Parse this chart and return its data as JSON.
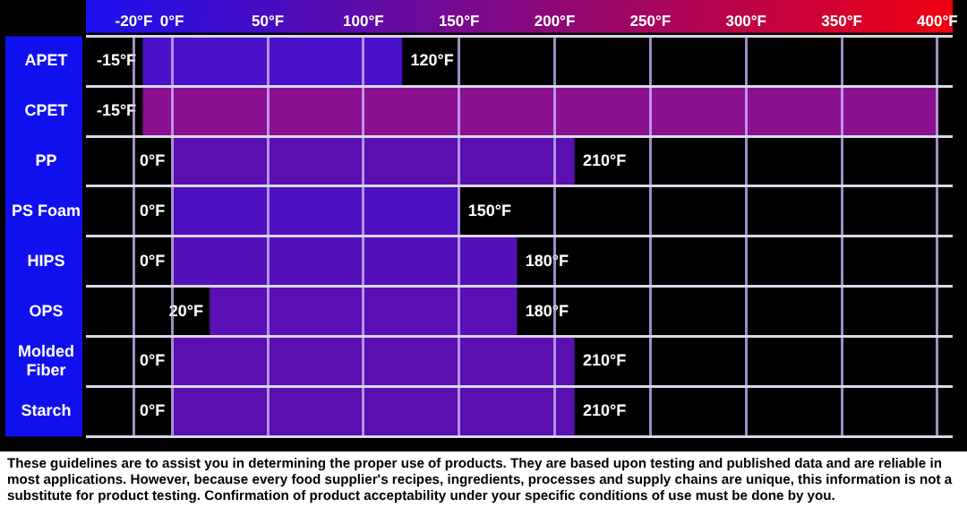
{
  "chart_data": {
    "type": "bar",
    "orientation": "horizontal",
    "categories": [
      "APET",
      "CPET",
      "PP",
      "PS Foam",
      "HIPS",
      "OPS",
      "Molded Fiber",
      "Starch"
    ],
    "base": [
      -15,
      -15,
      0,
      0,
      0,
      20,
      0,
      0
    ],
    "values": [
      135,
      415,
      210,
      150,
      180,
      160,
      210,
      210
    ],
    "colors": [
      "#4a12c8",
      "#8a1090",
      "#5a10b0",
      "#4c10c0",
      "#5410b8",
      "#5a10b4",
      "#5a10b0",
      "#5a10b0"
    ],
    "xlim": [
      -45,
      408
    ],
    "xticks": [
      {
        "value": -20,
        "label": "-20°F"
      },
      {
        "value": 0,
        "label": "0°F"
      },
      {
        "value": 50,
        "label": "50°F"
      },
      {
        "value": 100,
        "label": "100°F"
      },
      {
        "value": 150,
        "label": "150°F"
      },
      {
        "value": 200,
        "label": "200°F"
      },
      {
        "value": 250,
        "label": "250°F"
      },
      {
        "value": 300,
        "label": "300°F"
      },
      {
        "value": 350,
        "label": "350°F"
      },
      {
        "value": 400,
        "label": "400°F"
      }
    ],
    "grid": true,
    "annotations": [
      {
        "text": "-15°F",
        "x": -15,
        "y": "APET"
      },
      {
        "text": "120°F",
        "x": 120,
        "y": "APET"
      },
      {
        "text": "-15°F",
        "x": -15,
        "y": "CPET"
      },
      {
        "text": "0°F",
        "x": 0,
        "y": "PP"
      },
      {
        "text": "210°F",
        "x": 210,
        "y": "PP"
      },
      {
        "text": "0°F",
        "x": 0,
        "y": "PS Foam"
      },
      {
        "text": "150°F",
        "x": 150,
        "y": "PS Foam"
      },
      {
        "text": "0°F",
        "x": 0,
        "y": "HIPS"
      },
      {
        "text": "180°F",
        "x": 180,
        "y": "HIPS"
      },
      {
        "text": "20°F",
        "x": 20,
        "y": "OPS"
      },
      {
        "text": "180°F",
        "x": 180,
        "y": "OPS"
      },
      {
        "text": "0°F",
        "x": 0,
        "y": "Molded Fiber"
      },
      {
        "text": "210°F",
        "x": 210,
        "y": "Molded Fiber"
      },
      {
        "text": "0°F",
        "x": 0,
        "y": "Starch"
      },
      {
        "text": "210°F",
        "x": 210,
        "y": "Starch"
      },
      "These guidelines are to assist you in determining the proper use of products.  They are based upon testing and published data and are reliable in most applications.  However, because every food supplier's recipes, ingredients, processes and supply chains are unique, this information is not a substitute for product testing.  Confirmation of product acceptability under your specific conditions of use must be done by you."
    ]
  }
}
